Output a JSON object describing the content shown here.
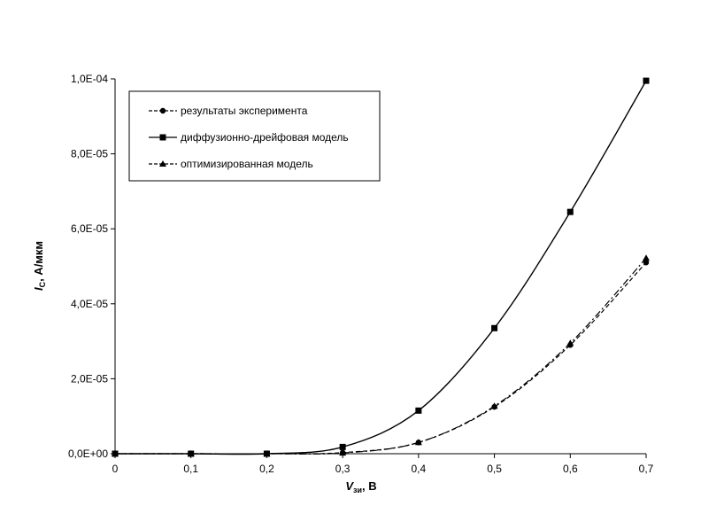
{
  "chart_data": {
    "type": "line",
    "title": "",
    "xlabel_main": "V",
    "xlabel_sub": "зи",
    "xlabel_tail": ", В",
    "ylabel_main": "I",
    "ylabel_sub": "С",
    "ylabel_tail": ", А/мкм",
    "x": [
      0,
      0.1,
      0.2,
      0.3,
      0.4,
      0.5,
      0.6,
      0.7
    ],
    "xlim": [
      0,
      0.7
    ],
    "ylim": [
      0,
      0.0001
    ],
    "x_ticks": [
      0,
      0.1,
      0.2,
      0.3,
      0.4,
      0.5,
      0.6,
      0.7
    ],
    "x_tick_labels": [
      "0",
      "0,1",
      "0,2",
      "0,3",
      "0,4",
      "0,5",
      "0,6",
      "0,7"
    ],
    "y_ticks": [
      0,
      2e-05,
      4e-05,
      6e-05,
      8e-05,
      0.0001
    ],
    "y_tick_labels": [
      "0,0E+00",
      "2,0E-05",
      "4,0E-05",
      "6,0E-05",
      "8,0E-05",
      "1,0E-04"
    ],
    "grid": false,
    "legend_position": "top-left",
    "series": [
      {
        "name": "результаты эксперимента",
        "marker": "circle",
        "dash": "dashed",
        "values": [
          0,
          0,
          0,
          3e-07,
          3e-06,
          1.25e-05,
          2.9e-05,
          5.1e-05
        ]
      },
      {
        "name": "диффузионно-дрейфовая модель",
        "marker": "square",
        "dash": "solid",
        "values": [
          0,
          0,
          0,
          1.8e-06,
          1.15e-05,
          3.35e-05,
          6.45e-05,
          9.95e-05
        ]
      },
      {
        "name": "оптимизированная модель",
        "marker": "triangle",
        "dash": "dashdot",
        "values": [
          0,
          0,
          0,
          2e-07,
          3e-06,
          1.27e-05,
          2.95e-05,
          5.22e-05
        ]
      }
    ]
  }
}
